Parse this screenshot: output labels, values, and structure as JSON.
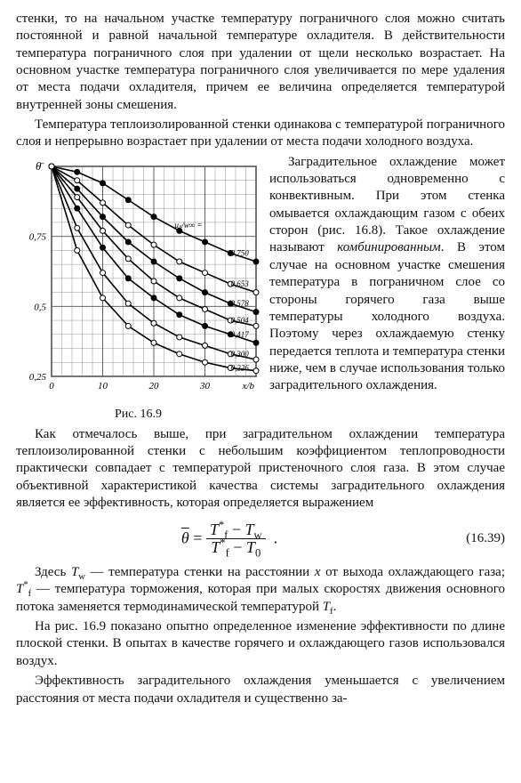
{
  "paragraphs": {
    "p1": "стенки, то на начальном участке температуру пограничного слоя можно считать постоянной и равной начальной температуре охладителя. В действительности температура пограничного слоя при удалении от щели несколько возрастает. На основном участке температура пограничного слоя увеличивается по мере удаления от места подачи охладителя, причем ее величина определяется температурой внутренней зоны смешения.",
    "p2": "Температура теплоизолированной стенки одинакова с температурой пограничного слоя и непрерывно возрастает при удалении от места подачи холодного воздуха.",
    "p3a": "Заградительное охлаждение может использоваться одновременно с конвективным. При этом стенка омывается охлаждающим газом с обеих сторон (рис. 16.8). Такое охлаждение называют ",
    "p3b": "комбинированным",
    "p3c": ". В этом случае на основном участке смешения температура в пограничном слое со стороны горячего газа выше температуры холодного воздуха. Поэтому через охлаждаемую стенку передается теплота и температура стенки ниже, чем в случае использования только заградительного охлаждения.",
    "p4": "Как отмечалось выше, при заградительном охлаждении температура теплоизолированной стенки с небольшим коэффициентом теплопроводности практически совпадает с температурой пристеночного слоя газа. В этом случае объективной характеристикой качества системы заградительного охлаждения является ее эффективность, которая определяется выражением",
    "p5_pre": "Здесь ",
    "p5_a": " — температура стенки на расстоянии ",
    "p5_b": " от выхода охлаждающего газа; ",
    "p5_c": " — температура торможения, которая при малых скоростях движения основного потока заменяется термодинамической температурой ",
    "p6": "На рис. 16.9 показано опытно определенное изменение эффективности по длине плоской стенки. В опытах в качестве горячего и охлаждающего газов использовался воздух.",
    "p7": "Эффективность заградительного охлаждения уменьшается с увеличением расстояния от места подачи охладителя и существенно за-"
  },
  "symbols": {
    "Tw": "T",
    "Tw_sub": "w",
    "x": "x",
    "Tf_star": "T",
    "Tf_star_sub": "f",
    "Tf_star_sup": "*",
    "Tf": "T",
    "Tf_sub": "f",
    "theta_bar": "θ",
    "T0": "T",
    "T0_sub": "0",
    "period": "."
  },
  "equation": {
    "number": "(16.39)"
  },
  "figure": {
    "caption": "Рис. 16.9",
    "type": "line",
    "y_axis_symbol": "θ̄",
    "x_axis_label": "x/b",
    "xlim": [
      0,
      40
    ],
    "ylim": [
      0.25,
      1.0
    ],
    "xticks": [
      0,
      10,
      20,
      30,
      40
    ],
    "yticks": [
      0.25,
      0.5,
      0.75,
      1.0
    ],
    "ytick_labels": [
      "0,25",
      "0,5",
      "0,75",
      ""
    ],
    "background_color": "#ffffff",
    "grid_color": "#555555",
    "grid_minor_color": "#777777",
    "axis_color": "#000000",
    "curve_color": "#000000",
    "curve_width": 1.6,
    "marker": {
      "shape": "circle",
      "size": 3,
      "stroke": "#000",
      "fill_open": "#fff",
      "fill_solid": "#000"
    },
    "series_label_header": "uₛ/w∞ =",
    "series": [
      {
        "label": "0,750",
        "fill": "solid",
        "xy": [
          [
            0,
            1.0
          ],
          [
            5,
            0.98
          ],
          [
            10,
            0.94
          ],
          [
            15,
            0.88
          ],
          [
            20,
            0.82
          ],
          [
            25,
            0.77
          ],
          [
            30,
            0.73
          ],
          [
            35,
            0.69
          ],
          [
            40,
            0.66
          ]
        ]
      },
      {
        "label": "0,653",
        "fill": "open",
        "xy": [
          [
            0,
            1.0
          ],
          [
            5,
            0.95
          ],
          [
            10,
            0.87
          ],
          [
            15,
            0.79
          ],
          [
            20,
            0.72
          ],
          [
            25,
            0.66
          ],
          [
            30,
            0.62
          ],
          [
            35,
            0.58
          ],
          [
            40,
            0.55
          ]
        ]
      },
      {
        "label": "0,578",
        "fill": "solid",
        "xy": [
          [
            0,
            1.0
          ],
          [
            5,
            0.92
          ],
          [
            10,
            0.82
          ],
          [
            15,
            0.73
          ],
          [
            20,
            0.66
          ],
          [
            25,
            0.6
          ],
          [
            30,
            0.55
          ],
          [
            35,
            0.51
          ],
          [
            40,
            0.48
          ]
        ]
      },
      {
        "label": "0,504",
        "fill": "open",
        "xy": [
          [
            0,
            1.0
          ],
          [
            5,
            0.89
          ],
          [
            10,
            0.77
          ],
          [
            15,
            0.67
          ],
          [
            20,
            0.59
          ],
          [
            25,
            0.53
          ],
          [
            30,
            0.49
          ],
          [
            35,
            0.45
          ],
          [
            40,
            0.43
          ]
        ]
      },
      {
        "label": "0,417",
        "fill": "solid",
        "xy": [
          [
            0,
            1.0
          ],
          [
            5,
            0.85
          ],
          [
            10,
            0.71
          ],
          [
            15,
            0.6
          ],
          [
            20,
            0.53
          ],
          [
            25,
            0.47
          ],
          [
            30,
            0.43
          ],
          [
            35,
            0.4
          ],
          [
            40,
            0.37
          ]
        ]
      },
      {
        "label": "0,300",
        "fill": "open",
        "xy": [
          [
            0,
            1.0
          ],
          [
            5,
            0.78
          ],
          [
            10,
            0.62
          ],
          [
            15,
            0.51
          ],
          [
            20,
            0.44
          ],
          [
            25,
            0.39
          ],
          [
            30,
            0.36
          ],
          [
            35,
            0.33
          ],
          [
            40,
            0.31
          ]
        ]
      },
      {
        "label": "0,226",
        "fill": "open",
        "xy": [
          [
            0,
            1.0
          ],
          [
            5,
            0.7
          ],
          [
            10,
            0.53
          ],
          [
            15,
            0.43
          ],
          [
            20,
            0.37
          ],
          [
            25,
            0.33
          ],
          [
            30,
            0.3
          ],
          [
            35,
            0.28
          ],
          [
            40,
            0.27
          ]
        ]
      }
    ],
    "label_fontsize": 9
  }
}
